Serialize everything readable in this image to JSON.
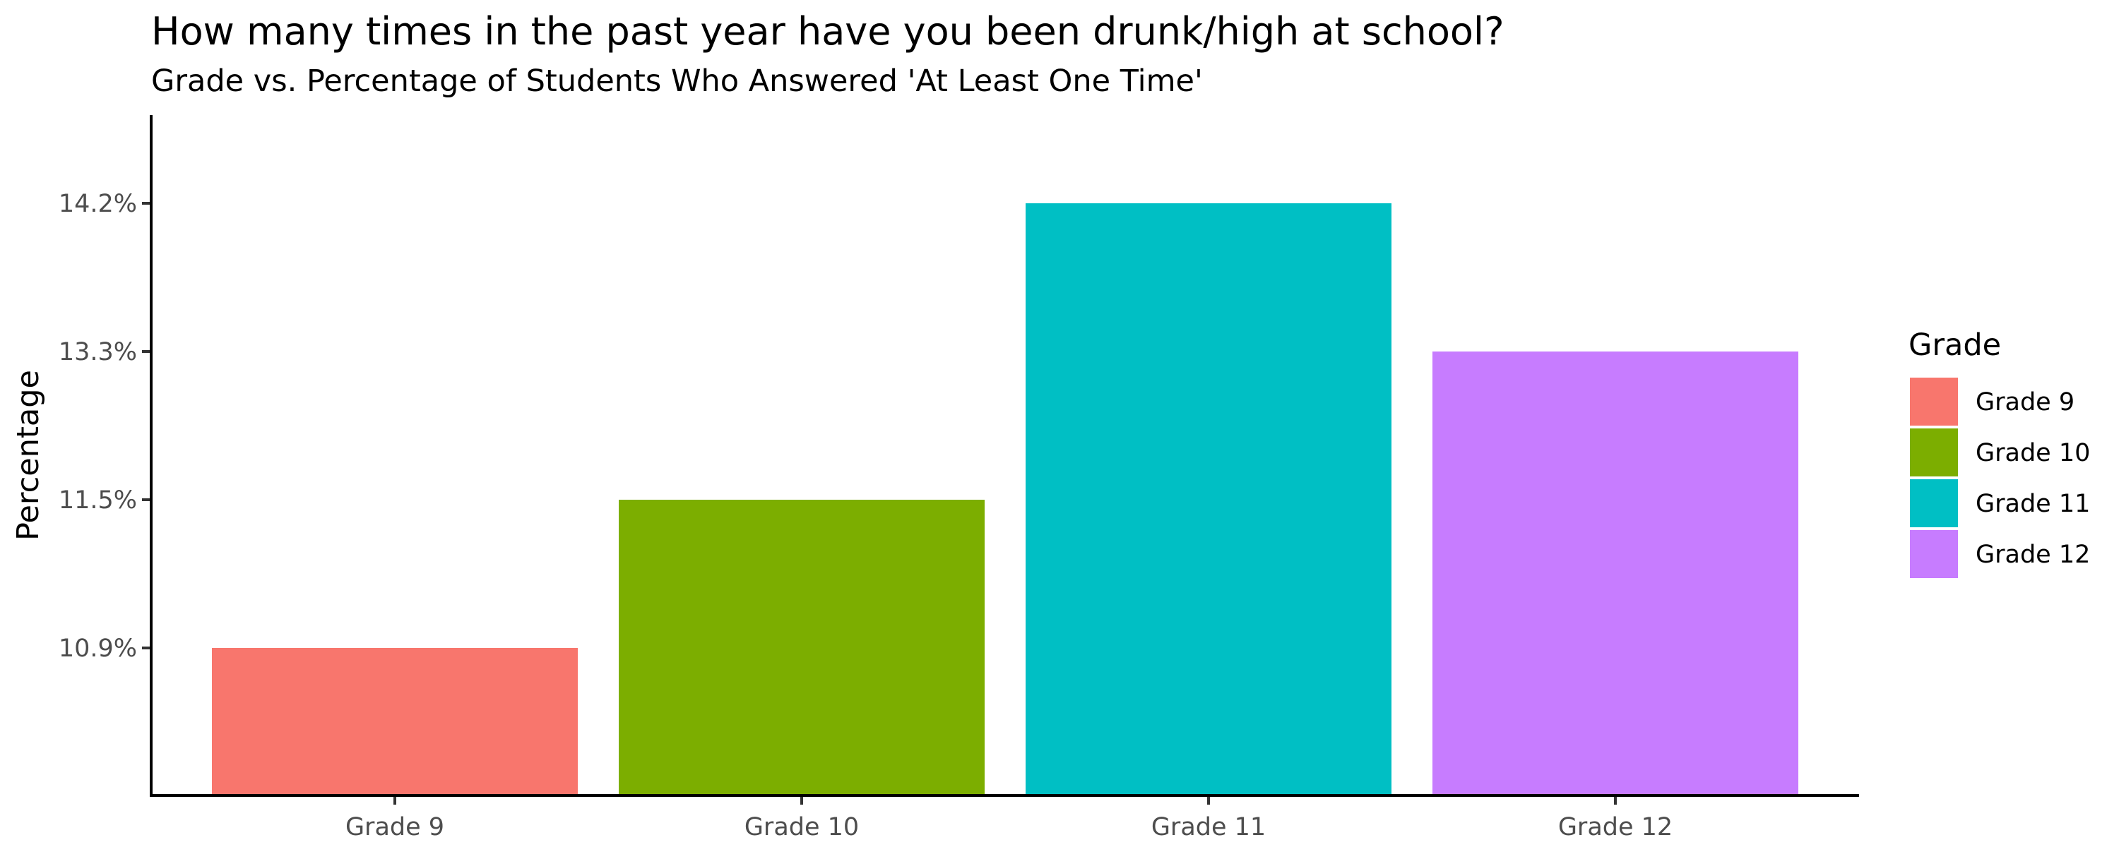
{
  "chart_data": {
    "type": "bar",
    "title": "How many times in the past year have you been drunk/high at school?",
    "subtitle": "Grade vs. Percentage of Students Who Answered 'At Least One Time'",
    "xlabel": "",
    "ylabel": "Percentage",
    "categories": [
      "Grade 9",
      "Grade 10",
      "Grade 11",
      "Grade 12"
    ],
    "values": [
      10.9,
      11.5,
      14.2,
      13.3
    ],
    "value_labels": [
      "10.9%",
      "11.5%",
      "14.2%",
      "13.3%"
    ],
    "y_ticks": [
      {
        "label": "10.9%",
        "rank": 1
      },
      {
        "label": "11.5%",
        "rank": 2
      },
      {
        "label": "13.3%",
        "rank": 3
      },
      {
        "label": "14.2%",
        "rank": 4
      }
    ],
    "y_scale": "discrete",
    "colors": [
      "#F8766D",
      "#7CAE00",
      "#00BFC4",
      "#C77CFF"
    ],
    "legend": {
      "title": "Grade",
      "position": "right",
      "entries": [
        "Grade 9",
        "Grade 10",
        "Grade 11",
        "Grade 12"
      ]
    },
    "grid": false
  }
}
